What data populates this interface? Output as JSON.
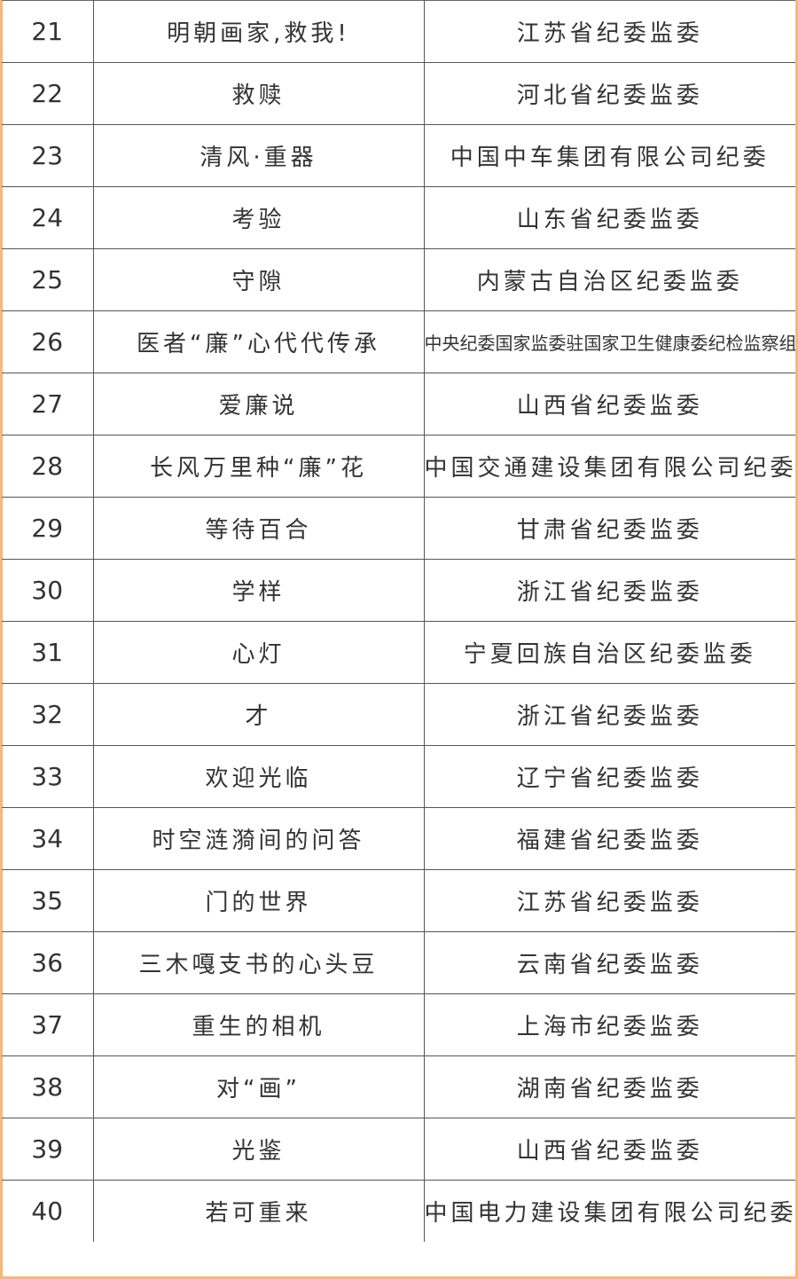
{
  "colors": {
    "frame": "#f6b877",
    "grid": "#555555",
    "text": "#333333"
  },
  "rows": [
    {
      "no": "21",
      "title": "明朝画家,救我!",
      "org": "江苏省纪委监委"
    },
    {
      "no": "22",
      "title": "救赎",
      "org": "河北省纪委监委"
    },
    {
      "no": "23",
      "title": "清风·重器",
      "org": "中国中车集团有限公司纪委"
    },
    {
      "no": "24",
      "title": "考验",
      "org": "山东省纪委监委"
    },
    {
      "no": "25",
      "title": "守隙",
      "org": "内蒙古自治区纪委监委"
    },
    {
      "no": "26",
      "title": "医者“廉”心代代传承",
      "org": "中央纪委国家监委驻国家卫生健康委纪检监察组"
    },
    {
      "no": "27",
      "title": "爱廉说",
      "org": "山西省纪委监委"
    },
    {
      "no": "28",
      "title": "长风万里种“廉”花",
      "org": "中国交通建设集团有限公司纪委"
    },
    {
      "no": "29",
      "title": "等待百合",
      "org": "甘肃省纪委监委"
    },
    {
      "no": "30",
      "title": "学样",
      "org": "浙江省纪委监委"
    },
    {
      "no": "31",
      "title": "心灯",
      "org": "宁夏回族自治区纪委监委"
    },
    {
      "no": "32",
      "title": "才",
      "org": "浙江省纪委监委"
    },
    {
      "no": "33",
      "title": "欢迎光临",
      "org": "辽宁省纪委监委"
    },
    {
      "no": "34",
      "title": "时空涟漪间的问答",
      "org": "福建省纪委监委"
    },
    {
      "no": "35",
      "title": "门的世界",
      "org": "江苏省纪委监委"
    },
    {
      "no": "36",
      "title": "三木嘎支书的心头豆",
      "org": "云南省纪委监委"
    },
    {
      "no": "37",
      "title": "重生的相机",
      "org": "上海市纪委监委"
    },
    {
      "no": "38",
      "title": "对“画”",
      "org": "湖南省纪委监委"
    },
    {
      "no": "39",
      "title": "光鉴",
      "org": "山西省纪委监委"
    },
    {
      "no": "40",
      "title": "若可重来",
      "org": "中国电力建设集团有限公司纪委"
    }
  ]
}
